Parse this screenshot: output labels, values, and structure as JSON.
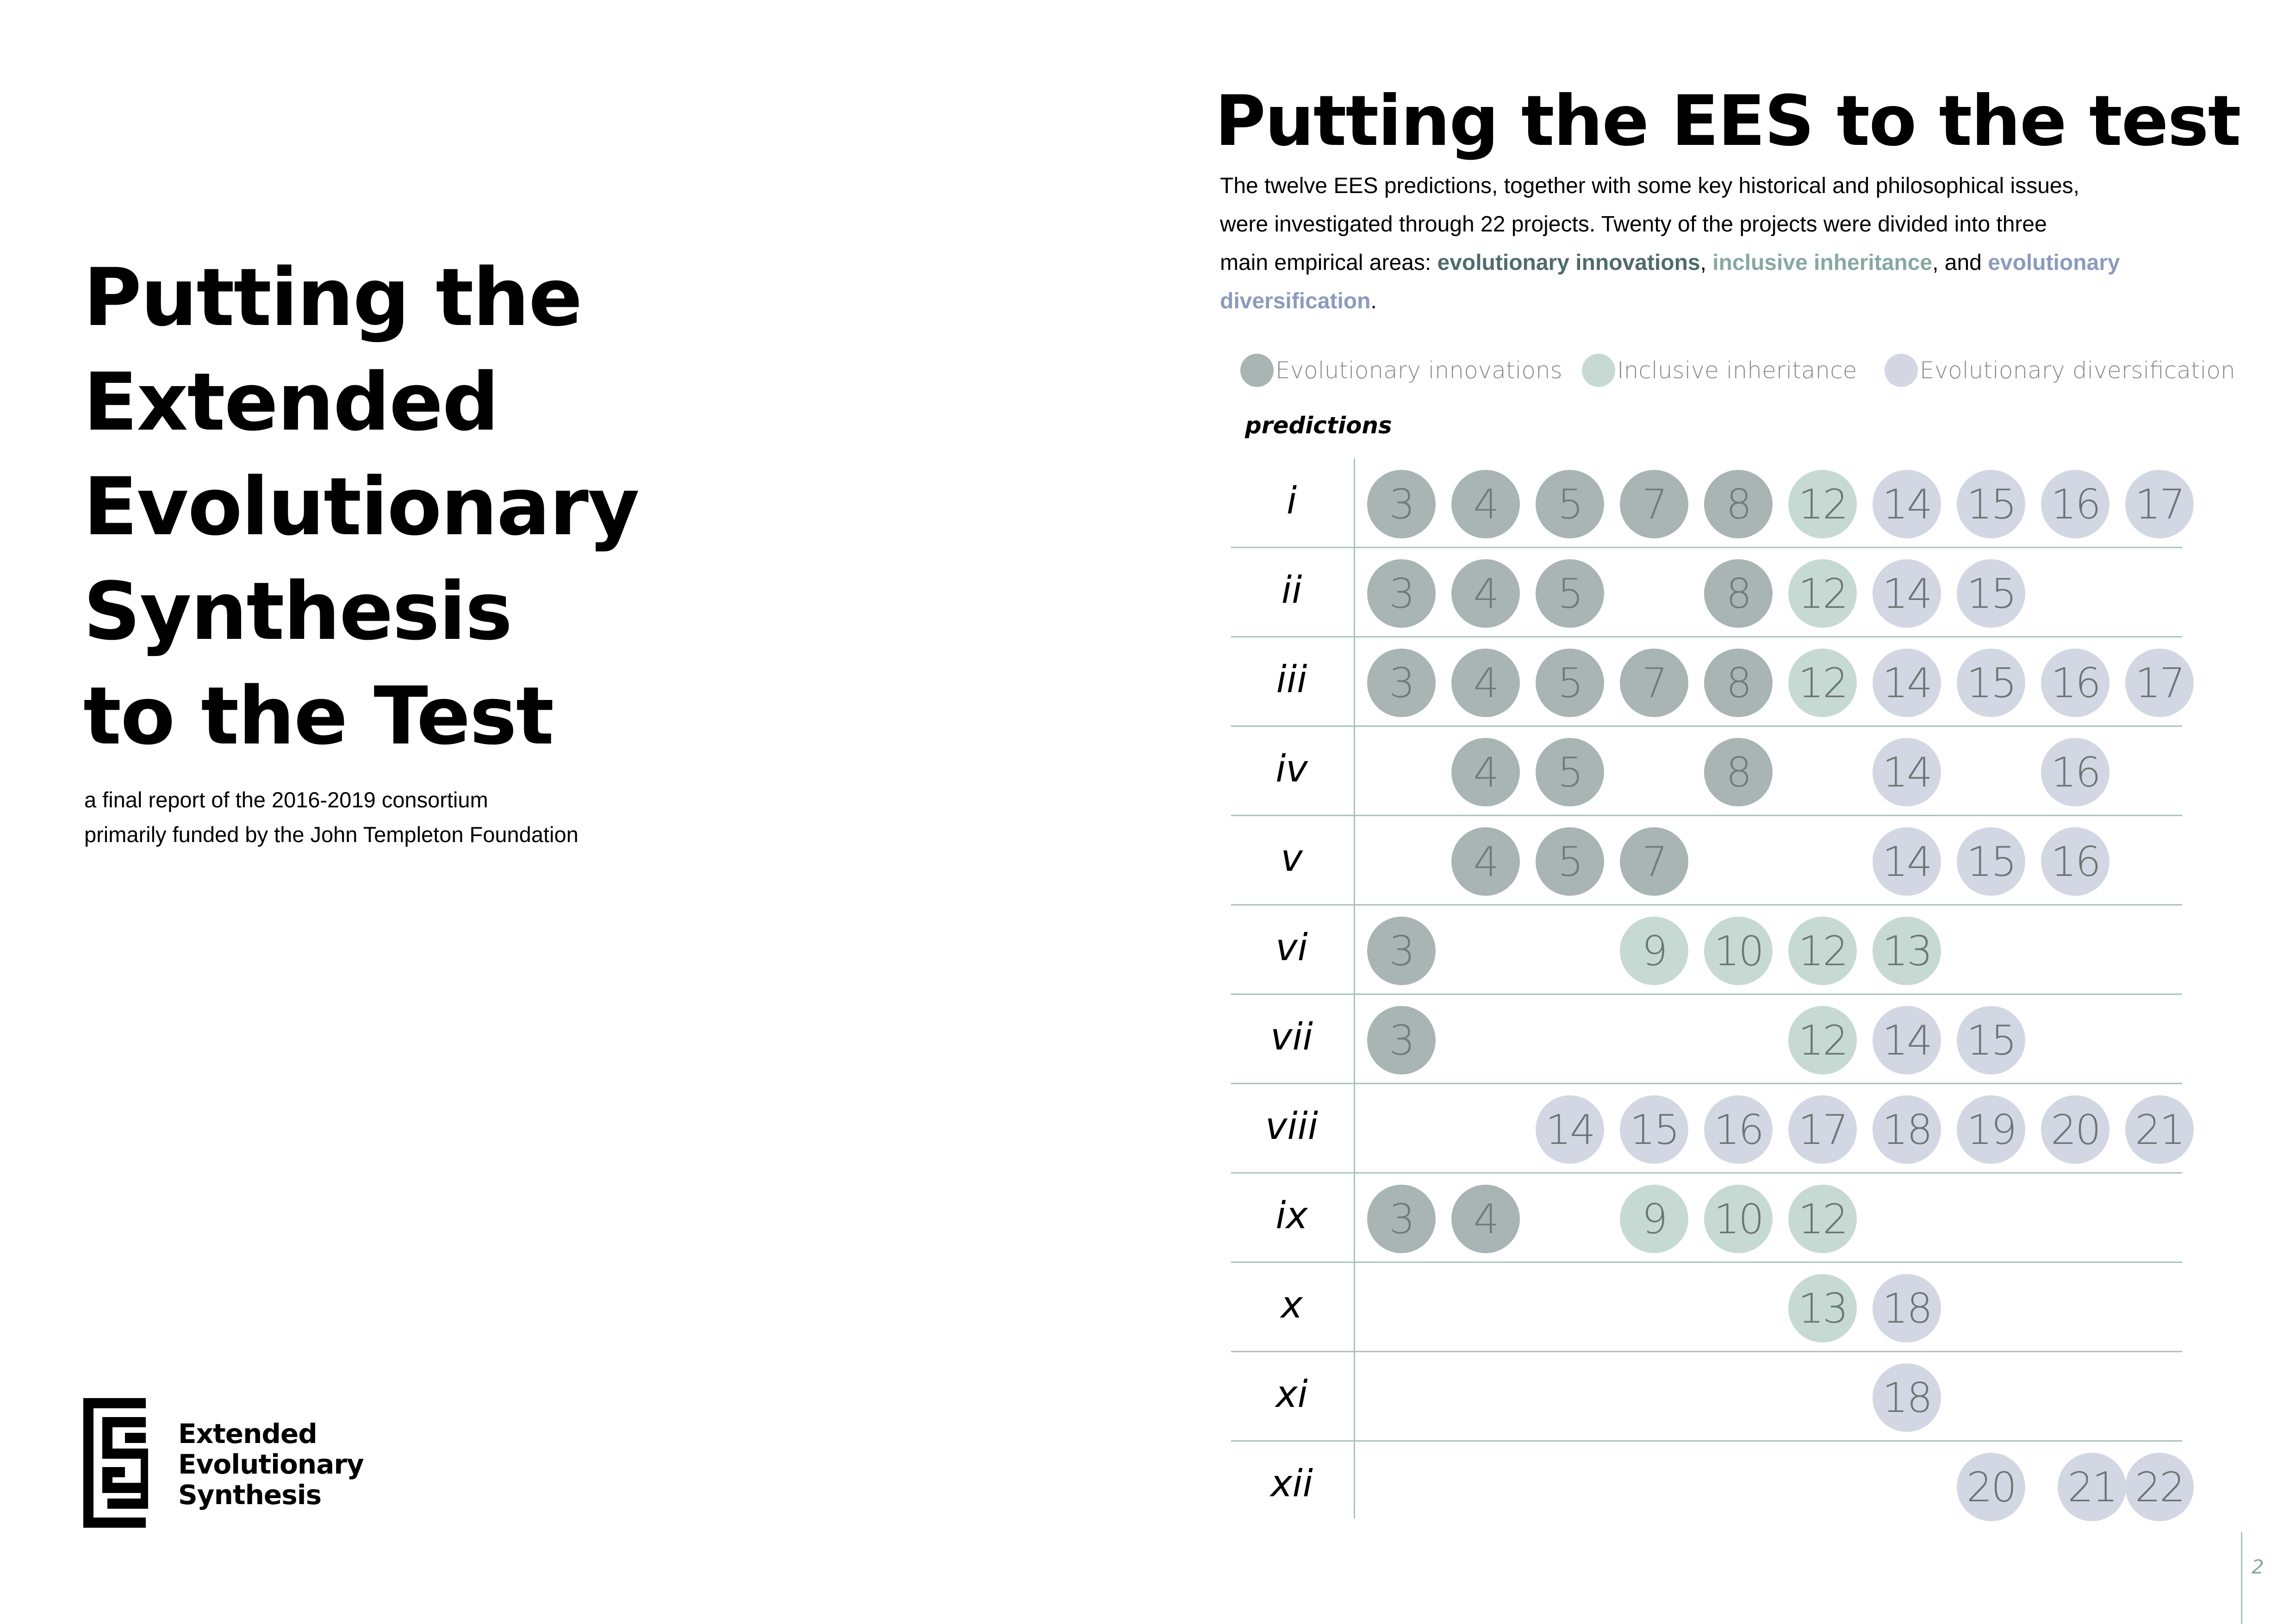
{
  "cover": {
    "title_lines": [
      "Putting the",
      "Extended",
      "Evolutionary",
      "Synthesis",
      "to the Test"
    ],
    "subtitle_lines": [
      "a final report of the 2016-2019 consortium",
      "primarily funded by the John Templeton Foundation"
    ],
    "logo": {
      "icon": "ees-logo-icon",
      "lines": [
        "Extended",
        "Evolutionary",
        "Synthesis"
      ]
    }
  },
  "right": {
    "title": "Putting the EES to the test",
    "intro": {
      "line1": "The twelve EES predictions, together with some key historical and philosophical issues,",
      "line2": "were investigated through 22 projects. Twenty of the projects were divided into three",
      "line3_pre": "main empirical areas: ",
      "term_innovation": "evolutionary innovations",
      "comma": ",",
      "space": " ",
      "term_inheritance": "inclusive inheritance",
      "and_text": ", and ",
      "term_div_part1": "evolutionary",
      "term_div_part2": "diversification",
      "period": "."
    },
    "legend": [
      {
        "label": "Evolutionary innovations",
        "color": "#a9b4b4"
      },
      {
        "label": "Inclusive inheritance",
        "color": "#c7d9d3"
      },
      {
        "label": "Evolutionary diversification",
        "color": "#d3d7e3"
      }
    ],
    "predictions_header": "predictions",
    "page_number": "2"
  },
  "colors": {
    "innovation_dot": "#a9b4b4",
    "inheritance_dot": "#c7d9d3",
    "diversification_dot": "#d3d7e3",
    "rule": "#a9c3bb"
  },
  "chart_data": {
    "type": "table",
    "columns_header": "predictions",
    "rows": [
      {
        "prediction": "i",
        "projects": [
          [
            "3",
            "innovation"
          ],
          [
            "4",
            "innovation"
          ],
          [
            "5",
            "innovation"
          ],
          [
            "7",
            "innovation"
          ],
          [
            "8",
            "innovation"
          ],
          [
            "12",
            "inheritance"
          ],
          [
            "14",
            "diversification"
          ],
          [
            "15",
            "diversification"
          ],
          [
            "16",
            "diversification"
          ],
          [
            "17",
            "diversification"
          ]
        ]
      },
      {
        "prediction": "ii",
        "projects": [
          [
            "3",
            "innovation"
          ],
          [
            "4",
            "innovation"
          ],
          [
            "5",
            "innovation"
          ],
          [
            "8",
            "innovation"
          ],
          [
            "12",
            "inheritance"
          ],
          [
            "14",
            "diversification"
          ],
          [
            "15",
            "diversification"
          ]
        ]
      },
      {
        "prediction": "iii",
        "projects": [
          [
            "3",
            "innovation"
          ],
          [
            "4",
            "innovation"
          ],
          [
            "5",
            "innovation"
          ],
          [
            "7",
            "innovation"
          ],
          [
            "8",
            "innovation"
          ],
          [
            "12",
            "inheritance"
          ],
          [
            "14",
            "diversification"
          ],
          [
            "15",
            "diversification"
          ],
          [
            "16",
            "diversification"
          ],
          [
            "17",
            "diversification"
          ]
        ]
      },
      {
        "prediction": "iv",
        "projects": [
          [
            "4",
            "innovation"
          ],
          [
            "5",
            "innovation"
          ],
          [
            "8",
            "innovation"
          ],
          [
            "14",
            "diversification"
          ],
          [
            "16",
            "diversification"
          ]
        ]
      },
      {
        "prediction": "v",
        "projects": [
          [
            "4",
            "innovation"
          ],
          [
            "5",
            "innovation"
          ],
          [
            "7",
            "innovation"
          ],
          [
            "14",
            "diversification"
          ],
          [
            "15",
            "diversification"
          ],
          [
            "16",
            "diversification"
          ]
        ]
      },
      {
        "prediction": "vi",
        "projects": [
          [
            "3",
            "innovation"
          ],
          [
            "9",
            "inheritance"
          ],
          [
            "10",
            "inheritance"
          ],
          [
            "12",
            "inheritance"
          ],
          [
            "13",
            "inheritance"
          ]
        ]
      },
      {
        "prediction": "vii",
        "projects": [
          [
            "3",
            "innovation"
          ],
          [
            "12",
            "inheritance"
          ],
          [
            "14",
            "diversification"
          ],
          [
            "15",
            "diversification"
          ]
        ]
      },
      {
        "prediction": "viii",
        "projects": [
          [
            "14",
            "diversification"
          ],
          [
            "15",
            "diversification"
          ],
          [
            "16",
            "diversification"
          ],
          [
            "17",
            "diversification"
          ],
          [
            "18",
            "diversification"
          ],
          [
            "19",
            "diversification"
          ],
          [
            "20",
            "diversification"
          ],
          [
            "21",
            "diversification"
          ]
        ]
      },
      {
        "prediction": "ix",
        "projects": [
          [
            "3",
            "innovation"
          ],
          [
            "4",
            "innovation"
          ],
          [
            "9",
            "inheritance"
          ],
          [
            "10",
            "inheritance"
          ],
          [
            "12",
            "inheritance"
          ]
        ]
      },
      {
        "prediction": "x",
        "projects": [
          [
            "13",
            "inheritance"
          ],
          [
            "18",
            "diversification"
          ]
        ]
      },
      {
        "prediction": "xi",
        "projects": [
          [
            "18",
            "diversification"
          ]
        ]
      },
      {
        "prediction": "xii",
        "projects": [
          [
            "20",
            "diversification"
          ],
          [
            "21",
            "diversification"
          ],
          [
            "22",
            "diversification"
          ]
        ]
      }
    ]
  }
}
